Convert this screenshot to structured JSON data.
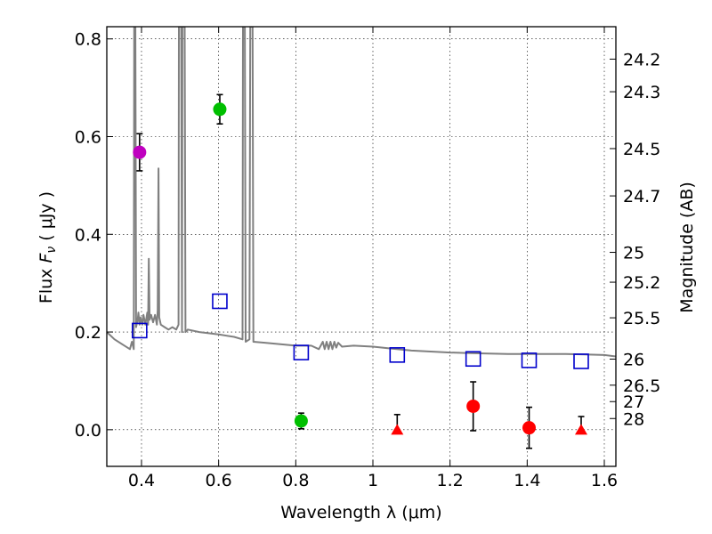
{
  "chart_data": {
    "type": "scatter",
    "xlabel": "Wavelength  λ (μm)",
    "ylabel_prefix": "Flux  ",
    "ylabel_var": "F",
    "ylabel_sub": "ν",
    "ylabel_unit": "  ( μJy )",
    "y2label": "Magnitude (AB)",
    "xlim": [
      0.31,
      1.63
    ],
    "ylim": [
      -0.075,
      0.825
    ],
    "grid": true,
    "x_ticks": [
      {
        "value": 0.4,
        "label": "0.4"
      },
      {
        "value": 0.6,
        "label": "0.6"
      },
      {
        "value": 0.8,
        "label": "0.8"
      },
      {
        "value": 1.0,
        "label": "1"
      },
      {
        "value": 1.2,
        "label": "1.2"
      },
      {
        "value": 1.4,
        "label": "1.4"
      },
      {
        "value": 1.6,
        "label": "1.6"
      }
    ],
    "y_ticks": [
      {
        "value": 0.0,
        "label": "0.0"
      },
      {
        "value": 0.2,
        "label": "0.2"
      },
      {
        "value": 0.4,
        "label": "0.4"
      },
      {
        "value": 0.6,
        "label": "0.6"
      },
      {
        "value": 0.8,
        "label": "0.8"
      }
    ],
    "mag_ticks": [
      {
        "value": 24.2,
        "label": "24.2"
      },
      {
        "value": 24.3,
        "label": "24.3"
      },
      {
        "value": 24.5,
        "label": "24.5"
      },
      {
        "value": 24.7,
        "label": "24.7"
      },
      {
        "value": 25,
        "label": "25"
      },
      {
        "value": 25.2,
        "label": "25.2"
      },
      {
        "value": 25.5,
        "label": "25.5"
      },
      {
        "value": 26,
        "label": "26"
      },
      {
        "value": 26.5,
        "label": "26.5"
      },
      {
        "value": 27,
        "label": "27"
      },
      {
        "value": 28,
        "label": "28"
      }
    ],
    "model_spectrum": {
      "color": "#808080",
      "points": [
        [
          0.31,
          0.2
        ],
        [
          0.33,
          0.185
        ],
        [
          0.35,
          0.175
        ],
        [
          0.37,
          0.165
        ],
        [
          0.375,
          0.18
        ],
        [
          0.38,
          0.165
        ],
        [
          0.381,
          0.825
        ],
        [
          0.384,
          0.825
        ],
        [
          0.386,
          0.21
        ],
        [
          0.39,
          0.225
        ],
        [
          0.392,
          0.24
        ],
        [
          0.395,
          0.215
        ],
        [
          0.398,
          0.23
        ],
        [
          0.402,
          0.215
        ],
        [
          0.405,
          0.235
        ],
        [
          0.41,
          0.215
        ],
        [
          0.415,
          0.24
        ],
        [
          0.417,
          0.215
        ],
        [
          0.419,
          0.35
        ],
        [
          0.421,
          0.225
        ],
        [
          0.425,
          0.235
        ],
        [
          0.43,
          0.22
        ],
        [
          0.435,
          0.235
        ],
        [
          0.44,
          0.215
        ],
        [
          0.442,
          0.245
        ],
        [
          0.444,
          0.535
        ],
        [
          0.446,
          0.23
        ],
        [
          0.45,
          0.215
        ],
        [
          0.46,
          0.21
        ],
        [
          0.47,
          0.205
        ],
        [
          0.48,
          0.21
        ],
        [
          0.49,
          0.205
        ],
        [
          0.496,
          0.215
        ],
        [
          0.497,
          0.825
        ],
        [
          0.503,
          0.825
        ],
        [
          0.505,
          0.2
        ],
        [
          0.506,
          0.825
        ],
        [
          0.512,
          0.825
        ],
        [
          0.514,
          0.2
        ],
        [
          0.52,
          0.205
        ],
        [
          0.55,
          0.2
        ],
        [
          0.6,
          0.195
        ],
        [
          0.64,
          0.19
        ],
        [
          0.662,
          0.185
        ],
        [
          0.663,
          0.825
        ],
        [
          0.668,
          0.825
        ],
        [
          0.67,
          0.18
        ],
        [
          0.68,
          0.185
        ],
        [
          0.682,
          0.825
        ],
        [
          0.688,
          0.825
        ],
        [
          0.69,
          0.18
        ],
        [
          0.72,
          0.178
        ],
        [
          0.76,
          0.175
        ],
        [
          0.8,
          0.172
        ],
        [
          0.84,
          0.172
        ],
        [
          0.86,
          0.165
        ],
        [
          0.87,
          0.18
        ],
        [
          0.875,
          0.165
        ],
        [
          0.88,
          0.18
        ],
        [
          0.885,
          0.165
        ],
        [
          0.89,
          0.18
        ],
        [
          0.895,
          0.165
        ],
        [
          0.9,
          0.18
        ],
        [
          0.905,
          0.168
        ],
        [
          0.91,
          0.178
        ],
        [
          0.92,
          0.17
        ],
        [
          0.95,
          0.172
        ],
        [
          1.0,
          0.17
        ],
        [
          1.05,
          0.166
        ],
        [
          1.1,
          0.162
        ],
        [
          1.15,
          0.16
        ],
        [
          1.2,
          0.158
        ],
        [
          1.25,
          0.157
        ],
        [
          1.3,
          0.156
        ],
        [
          1.35,
          0.155
        ],
        [
          1.4,
          0.155
        ],
        [
          1.45,
          0.155
        ],
        [
          1.5,
          0.155
        ],
        [
          1.55,
          0.154
        ],
        [
          1.6,
          0.153
        ],
        [
          1.63,
          0.15
        ]
      ]
    },
    "model_photometry": {
      "marker": "open-square",
      "color": "#0000cc",
      "points": [
        {
          "x": 0.395,
          "y": 0.203
        },
        {
          "x": 0.603,
          "y": 0.263
        },
        {
          "x": 0.814,
          "y": 0.158
        },
        {
          "x": 1.063,
          "y": 0.153
        },
        {
          "x": 1.26,
          "y": 0.145
        },
        {
          "x": 1.405,
          "y": 0.142
        },
        {
          "x": 1.54,
          "y": 0.14
        }
      ]
    },
    "observed_series": [
      {
        "name": "purple",
        "color": "#bf00bf",
        "marker": "circle",
        "points": [
          {
            "x": 0.395,
            "y": 0.568,
            "err": 0.038
          }
        ]
      },
      {
        "name": "green",
        "color": "#00bf00",
        "marker": "circle",
        "points": [
          {
            "x": 0.603,
            "y": 0.656,
            "err": 0.03
          },
          {
            "x": 0.814,
            "y": 0.018,
            "err": 0.016
          }
        ]
      },
      {
        "name": "red",
        "color": "#ff0000",
        "marker": "circle",
        "points": [
          {
            "x": 1.26,
            "y": 0.048,
            "err": 0.05
          },
          {
            "x": 1.405,
            "y": 0.004,
            "err": 0.042
          }
        ]
      },
      {
        "name": "red-limit",
        "color": "#ff0000",
        "marker": "triangle",
        "points": [
          {
            "x": 1.063,
            "y": 0.0,
            "err_up": 0.031
          },
          {
            "x": 1.54,
            "y": 0.0,
            "err_up": 0.027
          }
        ]
      }
    ]
  }
}
